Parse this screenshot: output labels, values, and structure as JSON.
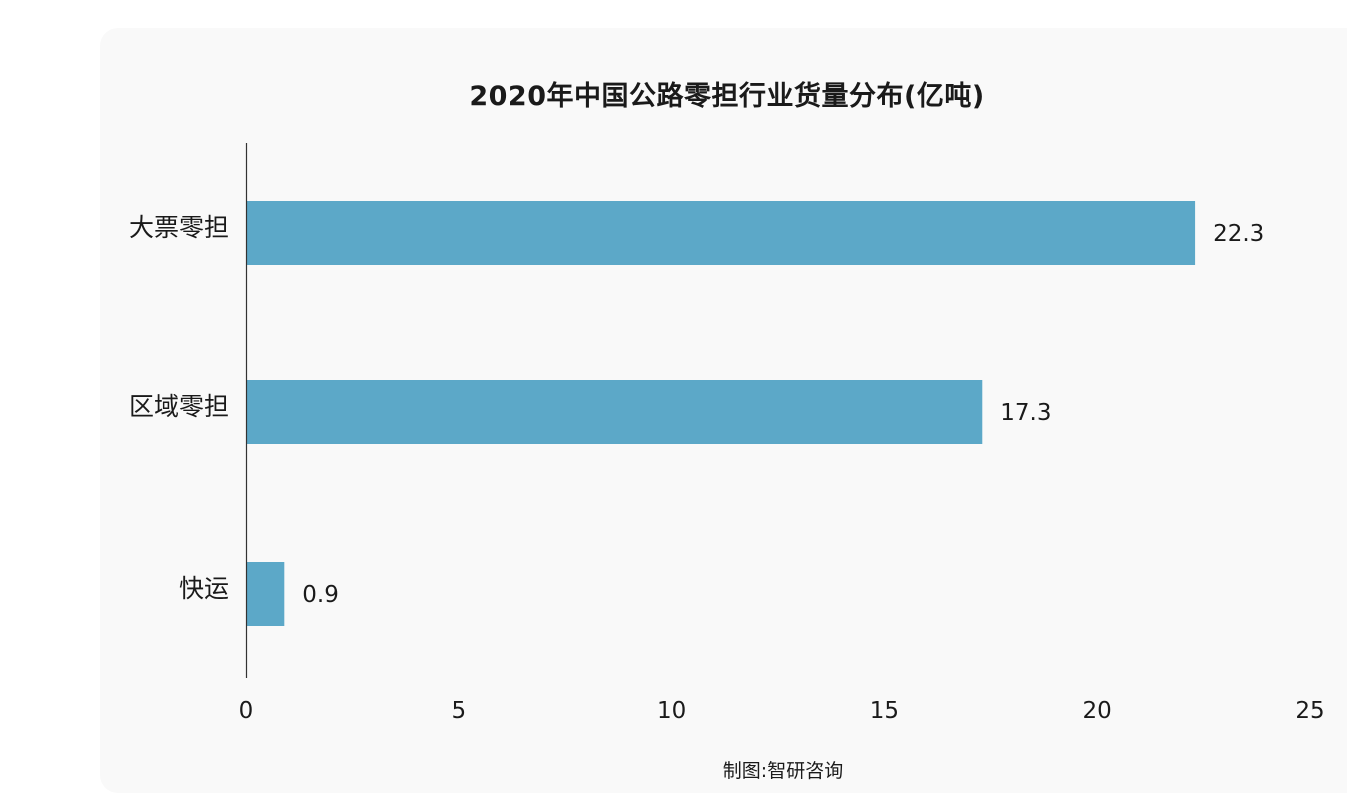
{
  "chart_data": {
    "type": "bar",
    "orientation": "horizontal",
    "title": "2020年中国公路零担行业货量分布(亿吨)",
    "categories": [
      "大票零担",
      "区域零担",
      "快运"
    ],
    "values": [
      22.3,
      17.3,
      0.9
    ],
    "value_labels": [
      "22.3",
      "17.3",
      "0.9"
    ],
    "xlim": [
      0,
      25
    ],
    "xticks": [
      0,
      5,
      10,
      15,
      20,
      25
    ],
    "xtick_labels": [
      "0",
      "5",
      "10",
      "15",
      "20",
      "25"
    ],
    "xlabel": "",
    "ylabel": "",
    "grid": false,
    "legend": "none",
    "bar_color": "#5ca8c8"
  },
  "source_note": "制图:智研咨询"
}
